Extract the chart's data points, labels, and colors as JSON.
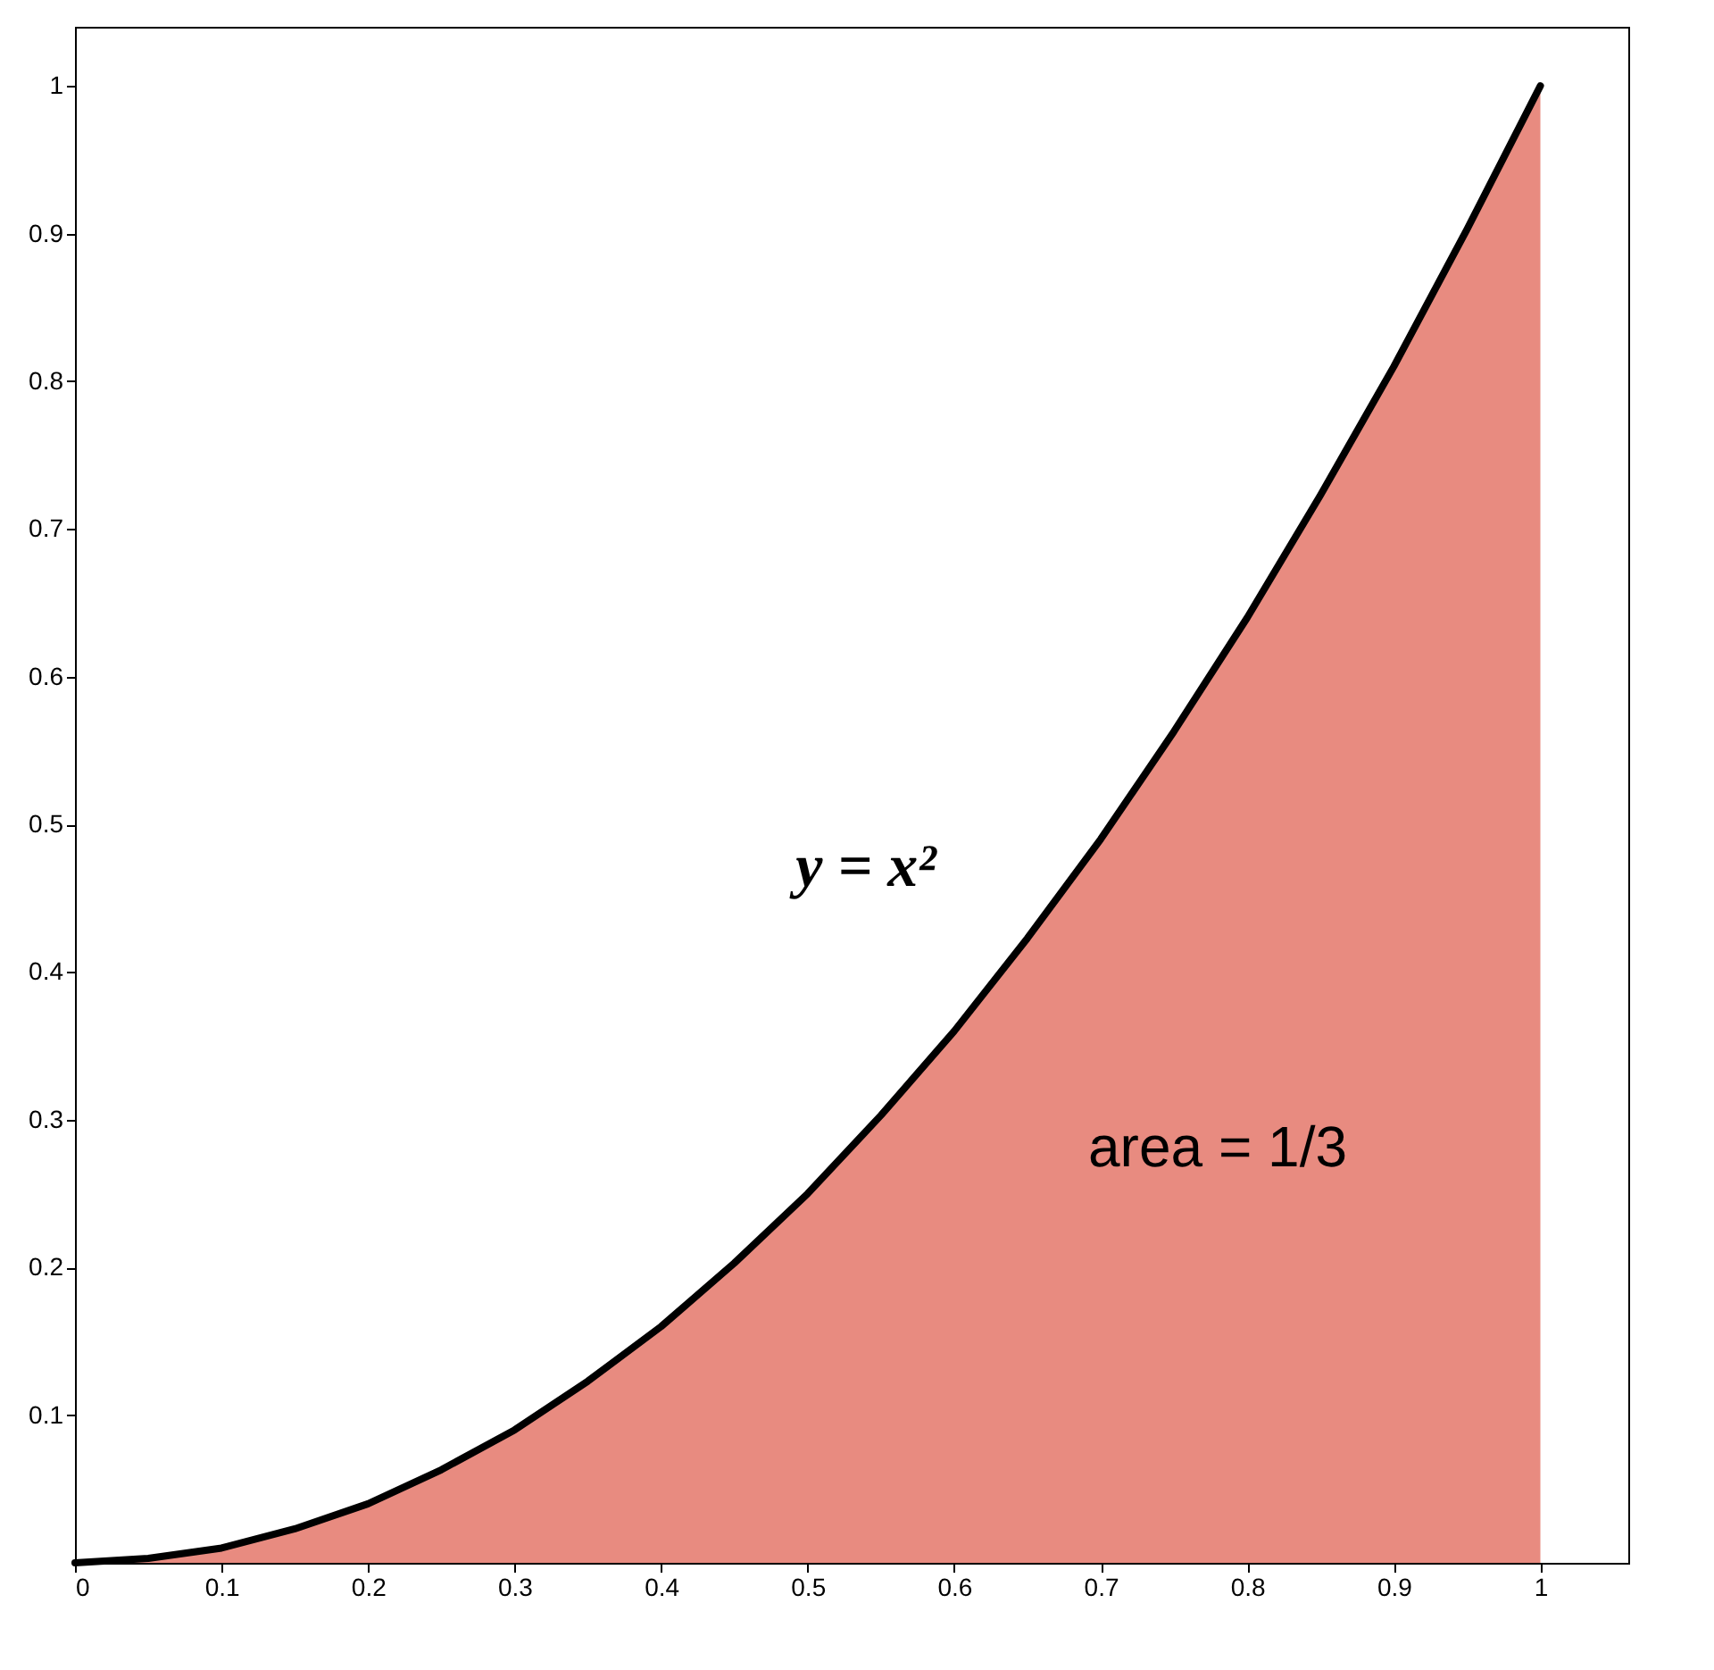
{
  "chart_data": {
    "type": "area",
    "x": [
      0,
      0.05,
      0.1,
      0.15,
      0.2,
      0.25,
      0.3,
      0.35,
      0.4,
      0.45,
      0.5,
      0.55,
      0.6,
      0.65,
      0.7,
      0.75,
      0.8,
      0.85,
      0.9,
      0.95,
      1
    ],
    "series": [
      {
        "color": "#e88b80",
        "values": [
          0,
          0.003,
          0.01,
          0.023,
          0.04,
          0.063,
          0.09,
          0.123,
          0.16,
          0.203,
          0.25,
          0.303,
          0.36,
          0.423,
          0.49,
          0.563,
          0.64,
          0.723,
          0.81,
          0.903,
          1
        ]
      }
    ],
    "xlim": [
      0,
      1.06
    ],
    "ylim": [
      0,
      1.04
    ],
    "xticks": [
      0,
      0.1,
      0.2,
      0.3,
      0.4,
      0.5,
      0.6,
      0.7,
      0.8,
      0.9,
      1
    ],
    "yticks": [
      0.1,
      0.2,
      0.3,
      0.4,
      0.5,
      0.6,
      0.7,
      0.8,
      0.9,
      1
    ],
    "line_style": "solid",
    "annotations": [
      "y = x²",
      "area = 1/3"
    ]
  }
}
